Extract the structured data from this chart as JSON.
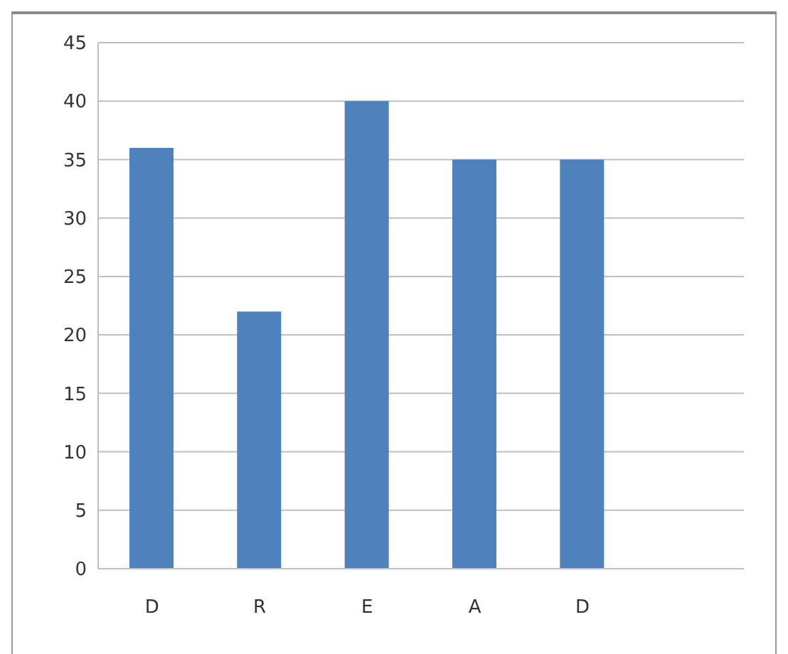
{
  "chart_data": {
    "type": "bar",
    "categories": [
      "D",
      "R",
      "E",
      "A",
      "D",
      null
    ],
    "values": [
      36,
      22,
      40,
      35,
      35,
      null
    ],
    "color": "#4f81bd",
    "ylim": [
      0,
      45
    ],
    "yticks": [
      0,
      5,
      10,
      15,
      20,
      25,
      30,
      35,
      40,
      45
    ],
    "grid": "y"
  }
}
